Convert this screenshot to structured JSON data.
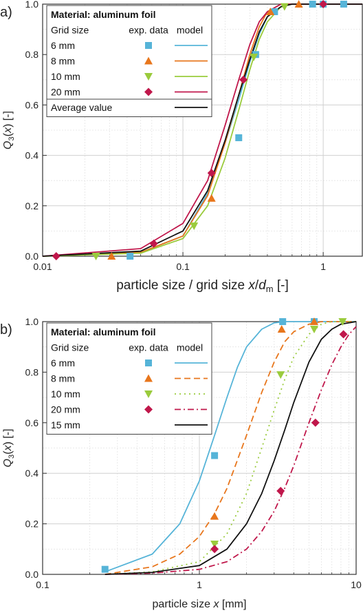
{
  "chart_data": [
    {
      "panel_label": "a)",
      "type": "line",
      "xscale": "log",
      "xlim": [
        0.01,
        1.9
      ],
      "ylim": [
        0,
        1.0
      ],
      "x_tick_labels": [
        "0.01",
        "0.1",
        "1"
      ],
      "x_tick_values": [
        0.01,
        0.1,
        1
      ],
      "y_tick_labels": [
        "0.0",
        "0.2",
        "0.4",
        "0.6",
        "0.8",
        "1.0"
      ],
      "y_tick_values": [
        0,
        0.2,
        0.4,
        0.6,
        0.8,
        1.0
      ],
      "xlabel_main": "particle size / grid size ",
      "xlabel_var": "x",
      "xlabel_sep": "/",
      "xlabel_d": "d",
      "xlabel_sub": "m",
      "xlabel_unit": " [-]",
      "ylabel_q": "Q",
      "ylabel_sub": "3",
      "ylabel_paren_open": "(",
      "ylabel_var": "x",
      "ylabel_paren_close": ") [-]",
      "grid": true,
      "legend": {
        "placement": "top-left",
        "title": "Material: aluminum foil",
        "col_grid": "Grid size",
        "col_exp": "exp. data",
        "col_model": "model",
        "entries": [
          "6 mm",
          "8 mm",
          "10 mm",
          "20 mm"
        ],
        "extra_entry": "Average value"
      },
      "series": [
        {
          "grid_size": "6 mm",
          "color": "#56b4d8",
          "marker": "square",
          "dash": "solid",
          "exp": {
            "x": [
              0.042,
              0.25,
              0.33,
              0.45,
              0.84,
              1.0,
              1.4
            ],
            "y": [
              0.0,
              0.47,
              0.8,
              0.97,
              1.0,
              1.0,
              1.0
            ]
          },
          "model": {
            "x": [
              0.01,
              0.05,
              0.1,
              0.15,
              0.2,
              0.25,
              0.3,
              0.35,
              0.4,
              0.5,
              0.6,
              1.0,
              1.9
            ],
            "y": [
              0.0,
              0.015,
              0.08,
              0.25,
              0.45,
              0.62,
              0.77,
              0.88,
              0.95,
              0.99,
              1.0,
              1.0,
              1.0
            ]
          }
        },
        {
          "grid_size": "8 mm",
          "color": "#e8761c",
          "marker": "triangle-up",
          "dash": "solid",
          "exp": {
            "x": [
              0.031,
              0.16,
              0.42,
              0.67
            ],
            "y": [
              0.0,
              0.23,
              0.97,
              1.0
            ]
          },
          "model": {
            "x": [
              0.01,
              0.05,
              0.1,
              0.15,
              0.2,
              0.25,
              0.3,
              0.35,
              0.4,
              0.5,
              0.6,
              1.0,
              1.9
            ],
            "y": [
              0.0,
              0.015,
              0.08,
              0.24,
              0.45,
              0.64,
              0.8,
              0.91,
              0.97,
              1.0,
              1.0,
              1.0,
              1.0
            ]
          }
        },
        {
          "grid_size": "10 mm",
          "color": "#9acb3c",
          "marker": "triangle-down",
          "dash": "solid",
          "exp": {
            "x": [
              0.024,
              0.12,
              0.32,
              0.53
            ],
            "y": [
              0.0,
              0.12,
              0.79,
              0.99
            ]
          },
          "model": {
            "x": [
              0.01,
              0.05,
              0.1,
              0.15,
              0.2,
              0.25,
              0.3,
              0.35,
              0.4,
              0.5,
              0.6,
              1.0,
              1.9
            ],
            "y": [
              0.0,
              0.012,
              0.07,
              0.2,
              0.39,
              0.58,
              0.74,
              0.86,
              0.93,
              0.99,
              1.0,
              1.0,
              1.0
            ]
          }
        },
        {
          "grid_size": "20 mm",
          "color": "#c0174b",
          "marker": "diamond",
          "dash": "solid",
          "exp": {
            "x": [
              0.0125,
              0.062,
              0.16,
              0.27,
              1.0
            ],
            "y": [
              0.0,
              0.05,
              0.33,
              0.7,
              1.0
            ]
          },
          "model": {
            "x": [
              0.01,
              0.05,
              0.1,
              0.15,
              0.2,
              0.25,
              0.3,
              0.35,
              0.4,
              0.5,
              0.6,
              1.0,
              1.9
            ],
            "y": [
              0.0,
              0.03,
              0.13,
              0.3,
              0.52,
              0.7,
              0.84,
              0.93,
              0.97,
              1.0,
              1.0,
              1.0,
              1.0
            ]
          }
        },
        {
          "grid_size": "Average value",
          "color": "#111111",
          "marker": "none",
          "dash": "solid",
          "model": {
            "x": [
              0.01,
              0.05,
              0.1,
              0.15,
              0.2,
              0.25,
              0.3,
              0.35,
              0.4,
              0.5,
              0.6,
              1.0,
              1.9
            ],
            "y": [
              0.0,
              0.02,
              0.1,
              0.26,
              0.46,
              0.64,
              0.78,
              0.89,
              0.95,
              0.99,
              1.0,
              1.0,
              1.0
            ]
          }
        }
      ]
    },
    {
      "panel_label": "b)",
      "type": "line",
      "xscale": "log",
      "xlim": [
        0.1,
        10
      ],
      "ylim": [
        0,
        1.0
      ],
      "x_tick_labels": [
        "0.1",
        "1",
        "10"
      ],
      "x_tick_values": [
        0.1,
        1,
        10
      ],
      "y_tick_labels": [
        "0.0",
        "0.2",
        "0.4",
        "0.6",
        "0.8",
        "1.0"
      ],
      "y_tick_values": [
        0,
        0.2,
        0.4,
        0.6,
        0.8,
        1.0
      ],
      "xlabel_main": "particle size ",
      "xlabel_var": "x",
      "xlabel_unit": " [mm]",
      "ylabel_q": "Q",
      "ylabel_sub": "3",
      "ylabel_paren_open": "(",
      "ylabel_var": "x",
      "ylabel_paren_close": ") [-]",
      "grid": true,
      "legend": {
        "placement": "top-left",
        "title": "Material: aluminum foil",
        "col_grid": "Grid size",
        "col_exp": "exp. data",
        "col_model": "model",
        "entries": [
          "6 mm",
          "8 mm",
          "10 mm",
          "20 mm"
        ],
        "extra_entry": "15 mm"
      },
      "series": [
        {
          "grid_size": "6 mm",
          "color": "#56b4d8",
          "marker": "square",
          "dash": "solid",
          "exp": {
            "x": [
              0.25,
              1.25,
              3.4,
              5.4
            ],
            "y": [
              0.02,
              0.47,
              1.0,
              1.0
            ]
          },
          "model": {
            "x": [
              0.25,
              0.5,
              0.75,
              1.0,
              1.25,
              1.5,
              1.75,
              2.0,
              2.5,
              3.0,
              3.5,
              10
            ],
            "y": [
              0.01,
              0.08,
              0.2,
              0.37,
              0.55,
              0.7,
              0.82,
              0.9,
              0.97,
              0.995,
              1.0,
              1.0
            ]
          }
        },
        {
          "grid_size": "8 mm",
          "color": "#e8761c",
          "marker": "triangle-up",
          "dash": "dashed",
          "exp": {
            "x": [
              1.25,
              3.35,
              5.4
            ],
            "y": [
              0.23,
              0.97,
              1.0
            ]
          },
          "model": {
            "x": [
              0.25,
              0.5,
              0.75,
              1.0,
              1.25,
              1.5,
              2.0,
              2.5,
              3.0,
              3.5,
              4.0,
              5.0,
              6.0,
              10
            ],
            "y": [
              0.0,
              0.03,
              0.08,
              0.15,
              0.24,
              0.34,
              0.55,
              0.72,
              0.84,
              0.92,
              0.96,
              0.99,
              1.0,
              1.0
            ]
          }
        },
        {
          "grid_size": "10 mm",
          "color": "#9acb3c",
          "marker": "triangle-down",
          "dash": "dotted",
          "exp": {
            "x": [
              1.25,
              3.3,
              5.4,
              8.2
            ],
            "y": [
              0.12,
              0.79,
              0.97,
              1.0
            ]
          },
          "model": {
            "x": [
              0.25,
              0.5,
              1.0,
              1.5,
              2.0,
              2.5,
              3.0,
              3.5,
              4.0,
              5.0,
              6.0,
              7.0,
              8.0,
              10
            ],
            "y": [
              0.0,
              0.01,
              0.05,
              0.16,
              0.32,
              0.5,
              0.65,
              0.77,
              0.86,
              0.95,
              0.99,
              1.0,
              1.0,
              1.0
            ]
          }
        },
        {
          "grid_size": "20 mm",
          "color": "#c0174b",
          "marker": "diamond",
          "dash": "dashdot",
          "exp": {
            "x": [
              1.25,
              3.3,
              5.5,
              8.3
            ],
            "y": [
              0.1,
              0.33,
              0.6,
              0.95
            ]
          },
          "model": {
            "x": [
              0.25,
              0.5,
              1.0,
              1.5,
              2.0,
              2.5,
              3.0,
              3.5,
              4.0,
              5.0,
              6.0,
              7.0,
              8.0,
              9.0,
              10
            ],
            "y": [
              0.0,
              0.005,
              0.02,
              0.05,
              0.1,
              0.17,
              0.25,
              0.34,
              0.43,
              0.6,
              0.73,
              0.83,
              0.9,
              0.95,
              0.98
            ]
          }
        },
        {
          "grid_size": "15 mm",
          "color": "#111111",
          "marker": "none",
          "dash": "solid",
          "model": {
            "x": [
              0.25,
              0.5,
              1.0,
              1.5,
              2.0,
              2.5,
              3.0,
              3.5,
              4.0,
              5.0,
              6.0,
              7.0,
              8.0,
              10
            ],
            "y": [
              0.0,
              0.008,
              0.035,
              0.1,
              0.2,
              0.32,
              0.45,
              0.57,
              0.68,
              0.84,
              0.93,
              0.97,
              0.99,
              1.0
            ]
          }
        }
      ]
    }
  ]
}
